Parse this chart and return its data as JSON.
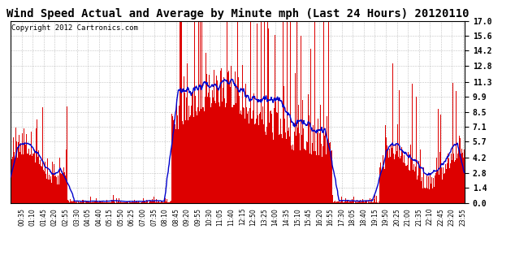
{
  "title": "Wind Speed Actual and Average by Minute mph (Last 24 Hours) 20120110",
  "copyright": "Copyright 2012 Cartronics.com",
  "ylim": [
    0.0,
    17.0
  ],
  "yticks": [
    0.0,
    1.4,
    2.8,
    4.2,
    5.7,
    7.1,
    8.5,
    9.9,
    11.3,
    12.8,
    14.2,
    15.6,
    17.0
  ],
  "bar_color": "#dd0000",
  "line_color": "#0000cc",
  "bg_color": "#ffffff",
  "grid_color": "#999999",
  "title_fontsize": 10,
  "copyright_fontsize": 6.5,
  "tick_labelsize": 5.5,
  "ytick_labelsize": 7
}
